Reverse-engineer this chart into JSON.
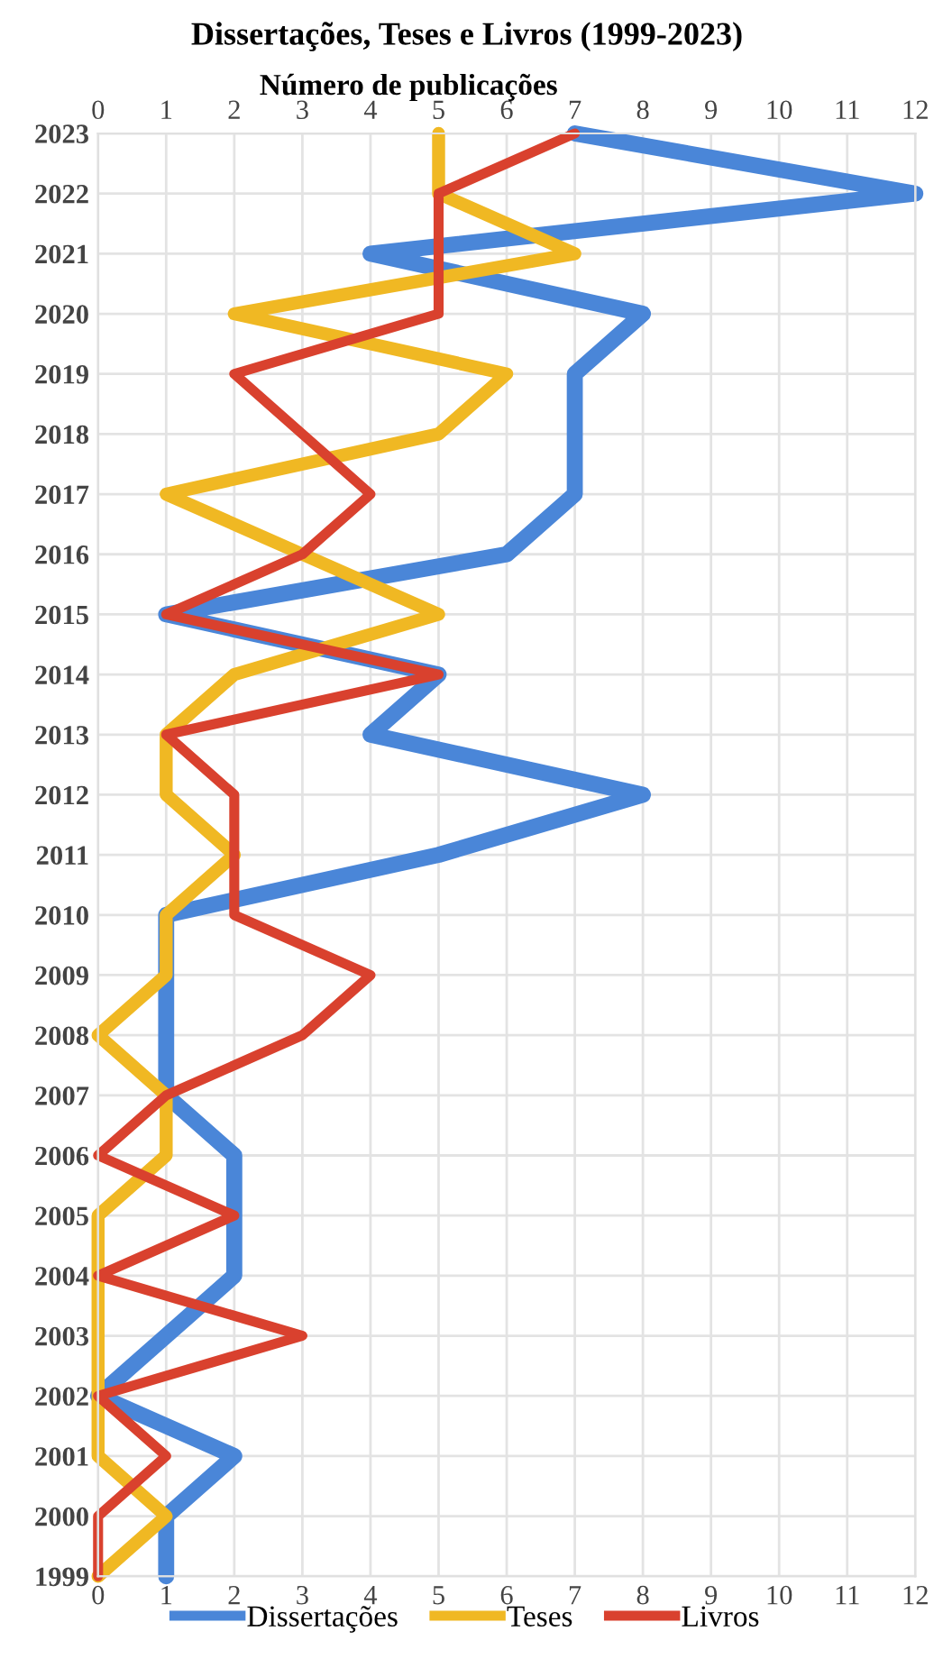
{
  "chart_data": {
    "type": "line",
    "orientation": "horizontal",
    "title": "Dissertações, Teses e Livros (1999-2023)",
    "x2label": "Número de publicações",
    "categories": [
      "2023",
      "2022",
      "2021",
      "2020",
      "2019",
      "2018",
      "2017",
      "2016",
      "2015",
      "2014",
      "2013",
      "2012",
      "2011",
      "2010",
      "2009",
      "2008",
      "2007",
      "2006",
      "2005",
      "2004",
      "2003",
      "2002",
      "2001",
      "2000",
      "1999"
    ],
    "series": [
      {
        "name": "Dissertações",
        "color": "#4a86d8",
        "values": [
          7,
          12,
          4,
          8,
          7,
          7,
          7,
          6,
          1,
          5,
          4,
          8,
          5,
          1,
          1,
          1,
          1,
          2,
          2,
          2,
          1,
          0,
          2,
          1,
          1
        ]
      },
      {
        "name": "Teses",
        "color": "#f0b823",
        "values": [
          5,
          5,
          7,
          2,
          6,
          5,
          1,
          3,
          5,
          2,
          1,
          1,
          2,
          1,
          1,
          0,
          1,
          1,
          0,
          0,
          0,
          0,
          0,
          1,
          0
        ]
      },
      {
        "name": "Livros",
        "color": "#d9412e",
        "values": [
          7,
          5,
          5,
          5,
          2,
          3,
          4,
          3,
          1,
          5,
          1,
          2,
          2,
          2,
          4,
          3,
          1,
          0,
          2,
          0,
          3,
          0,
          1,
          0,
          0
        ]
      }
    ],
    "xlim": [
      0,
      12
    ],
    "xticks": [
      0,
      1,
      2,
      3,
      4,
      5,
      6,
      7,
      8,
      9,
      10,
      11,
      12
    ],
    "x2lim": [
      0,
      12
    ],
    "x2ticks": [
      0,
      1,
      2,
      3,
      4,
      5,
      6,
      7,
      8,
      9,
      10,
      11,
      12
    ],
    "grid": true,
    "legend": "bottom",
    "marker": "none",
    "line_style": "solid"
  }
}
